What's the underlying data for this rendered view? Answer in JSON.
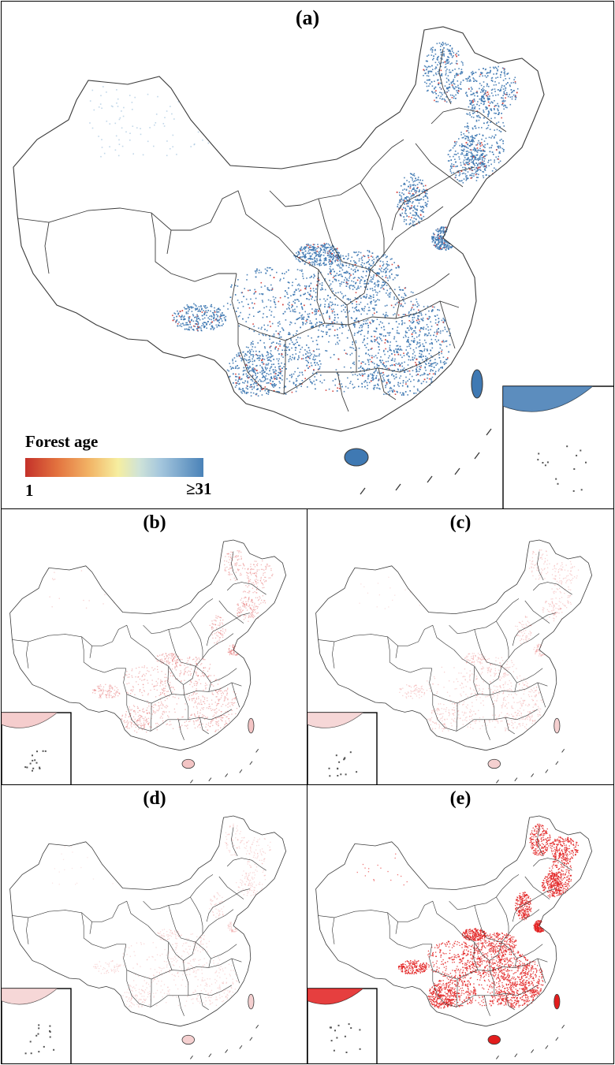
{
  "panels": {
    "a": {
      "label": "(a)"
    },
    "b": {
      "label": "(b)"
    },
    "c": {
      "label": "(c)"
    },
    "d": {
      "label": "(d)"
    },
    "e": {
      "label": "(e)"
    }
  },
  "legend": {
    "title": "Forest age",
    "min_label": "1",
    "max_label": "≥31",
    "colors": [
      "#c4312a",
      "#e3733f",
      "#f2b466",
      "#f6ee9f",
      "#cfe3d8",
      "#a4c6dd",
      "#4a82b8"
    ]
  },
  "colors": {
    "forest_old": "#3f79b3",
    "forest_young": "#d23a34",
    "panel_b_fill": "#e46a6a",
    "panel_c_fill": "#ee8f8f",
    "panel_d_fill": "#efa3a3",
    "panel_e_fill": "#e21d1d",
    "boundary": "#3a3a3a"
  }
}
